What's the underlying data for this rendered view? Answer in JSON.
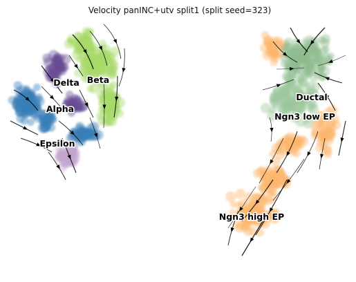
{
  "chart_data": {
    "type": "scatter",
    "title": "Velocity panINC+utv split1 (split seed=323)",
    "xlabel": "",
    "ylabel": "",
    "axes_visible": false,
    "grid": false,
    "legend": "none",
    "annotation": "velocity streamlines with arrowheads overlaid on embedding",
    "series": [
      {
        "name": "Delta",
        "color": "#6a4c93"
      },
      {
        "name": "Beta",
        "color": "#a6d96a"
      },
      {
        "name": "Alpha",
        "color": "#3a7fb8"
      },
      {
        "name": "Epsilon",
        "color": "#c2a5cf"
      },
      {
        "name": "Ductal",
        "color": "#8fbc8f"
      },
      {
        "name": "Ngn3 low EP",
        "color": "#9cc59a"
      },
      {
        "name": "Ngn3 high EP",
        "color": "#fdb56b"
      }
    ],
    "labels": [
      "Delta",
      "Beta",
      "Alpha",
      "Epsilon",
      "Ductal",
      "Ngn3 low EP",
      "Ngn3 high EP"
    ]
  }
}
